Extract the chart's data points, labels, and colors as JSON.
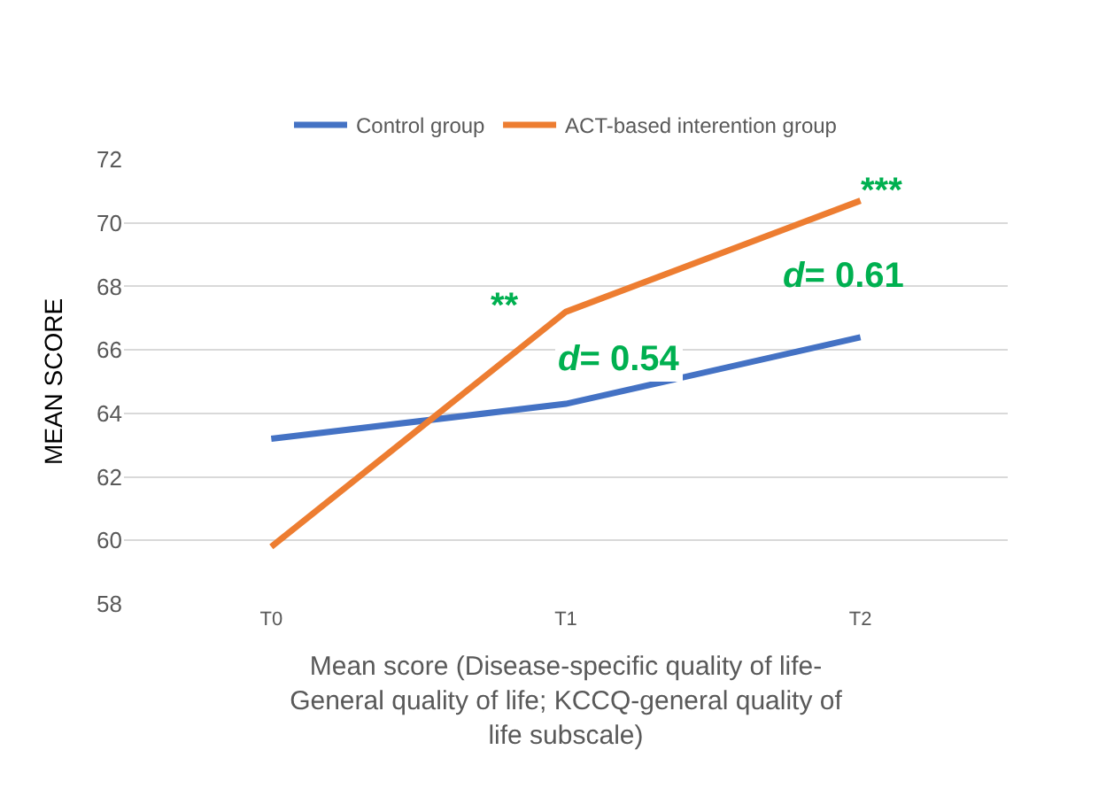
{
  "chart_data": {
    "type": "line",
    "xlabel": "Mean score (Disease-specific quality of life-\nGeneral quality of life; KCCQ-general quality of\nlife subscale)",
    "ylabel": "MEAN SCORE",
    "categories": [
      "T0",
      "T1",
      "T2"
    ],
    "series": [
      {
        "name": "Control group",
        "color": "#4472c4",
        "values": [
          63.2,
          64.3,
          66.4
        ]
      },
      {
        "name": "ACT-based interention group",
        "color": "#ed7d31",
        "values": [
          59.8,
          67.2,
          70.7
        ]
      }
    ],
    "ylim": [
      58,
      72
    ],
    "yticks": [
      58,
      60,
      62,
      64,
      66,
      68,
      70,
      72
    ],
    "grid": "y",
    "legend": "top",
    "marker": "none",
    "line_style": "solid",
    "annotations": [
      "**",
      "d= 0.54",
      "***",
      "d= 0.61"
    ]
  }
}
